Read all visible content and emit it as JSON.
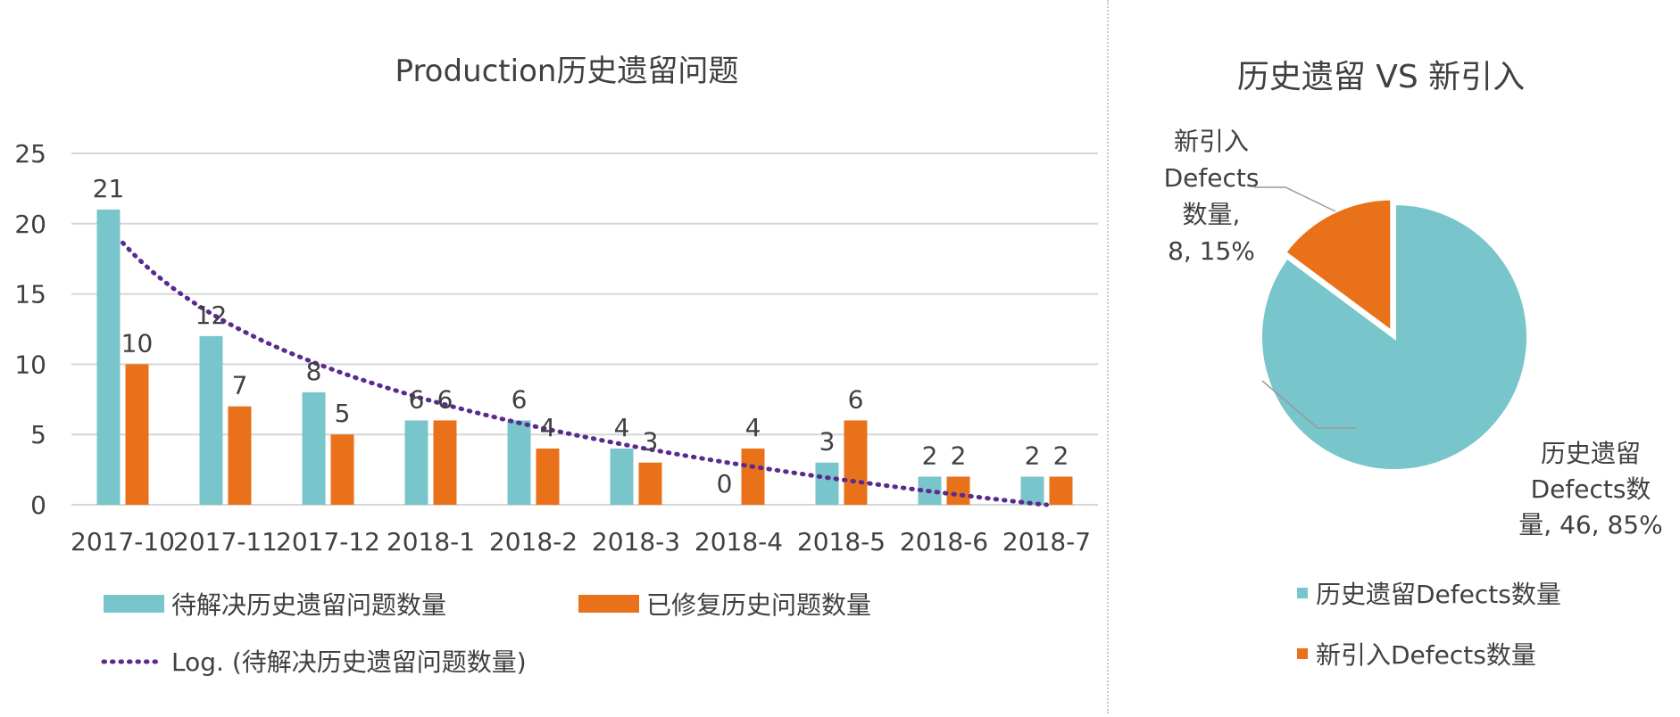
{
  "chart_data": [
    {
      "type": "bar",
      "title": "Production历史遗留问题",
      "categories": [
        "2017-10",
        "2017-11",
        "2017-12",
        "2018-1",
        "2018-2",
        "2018-3",
        "2018-4",
        "2018-5",
        "2018-6",
        "2018-7"
      ],
      "series": [
        {
          "name": "待解决历史遗留问题数量",
          "values": [
            21,
            12,
            8,
            6,
            6,
            4,
            0,
            3,
            2,
            2
          ],
          "color": "#78c5cb"
        },
        {
          "name": "已修复历史问题数量",
          "values": [
            10,
            7,
            5,
            6,
            4,
            3,
            4,
            6,
            2,
            2
          ],
          "color": "#e8711a"
        }
      ],
      "trendline": {
        "name": "Log. (待解决历史遗留问题数量)",
        "type": "logarithmic",
        "color": "#5b2a8e"
      },
      "ylim": [
        0,
        25
      ],
      "yticks": [
        0,
        5,
        10,
        15,
        20,
        25
      ],
      "grid": true,
      "legend_position": "bottom"
    },
    {
      "type": "pie",
      "title": "历史遗留 VS 新引入",
      "slices": [
        {
          "name": "历史遗留Defects数量",
          "value": 46,
          "percent": 85,
          "color": "#78c5cb",
          "label_lines": [
            "历史遗留",
            "Defects数",
            "量, 46, 85%"
          ]
        },
        {
          "name": "新引入Defects数量",
          "value": 8,
          "percent": 15,
          "color": "#e8711a",
          "label_lines": [
            "新引入",
            "Defects",
            "数量,",
            "8, 15%"
          ]
        }
      ],
      "legend_position": "bottom"
    }
  ]
}
